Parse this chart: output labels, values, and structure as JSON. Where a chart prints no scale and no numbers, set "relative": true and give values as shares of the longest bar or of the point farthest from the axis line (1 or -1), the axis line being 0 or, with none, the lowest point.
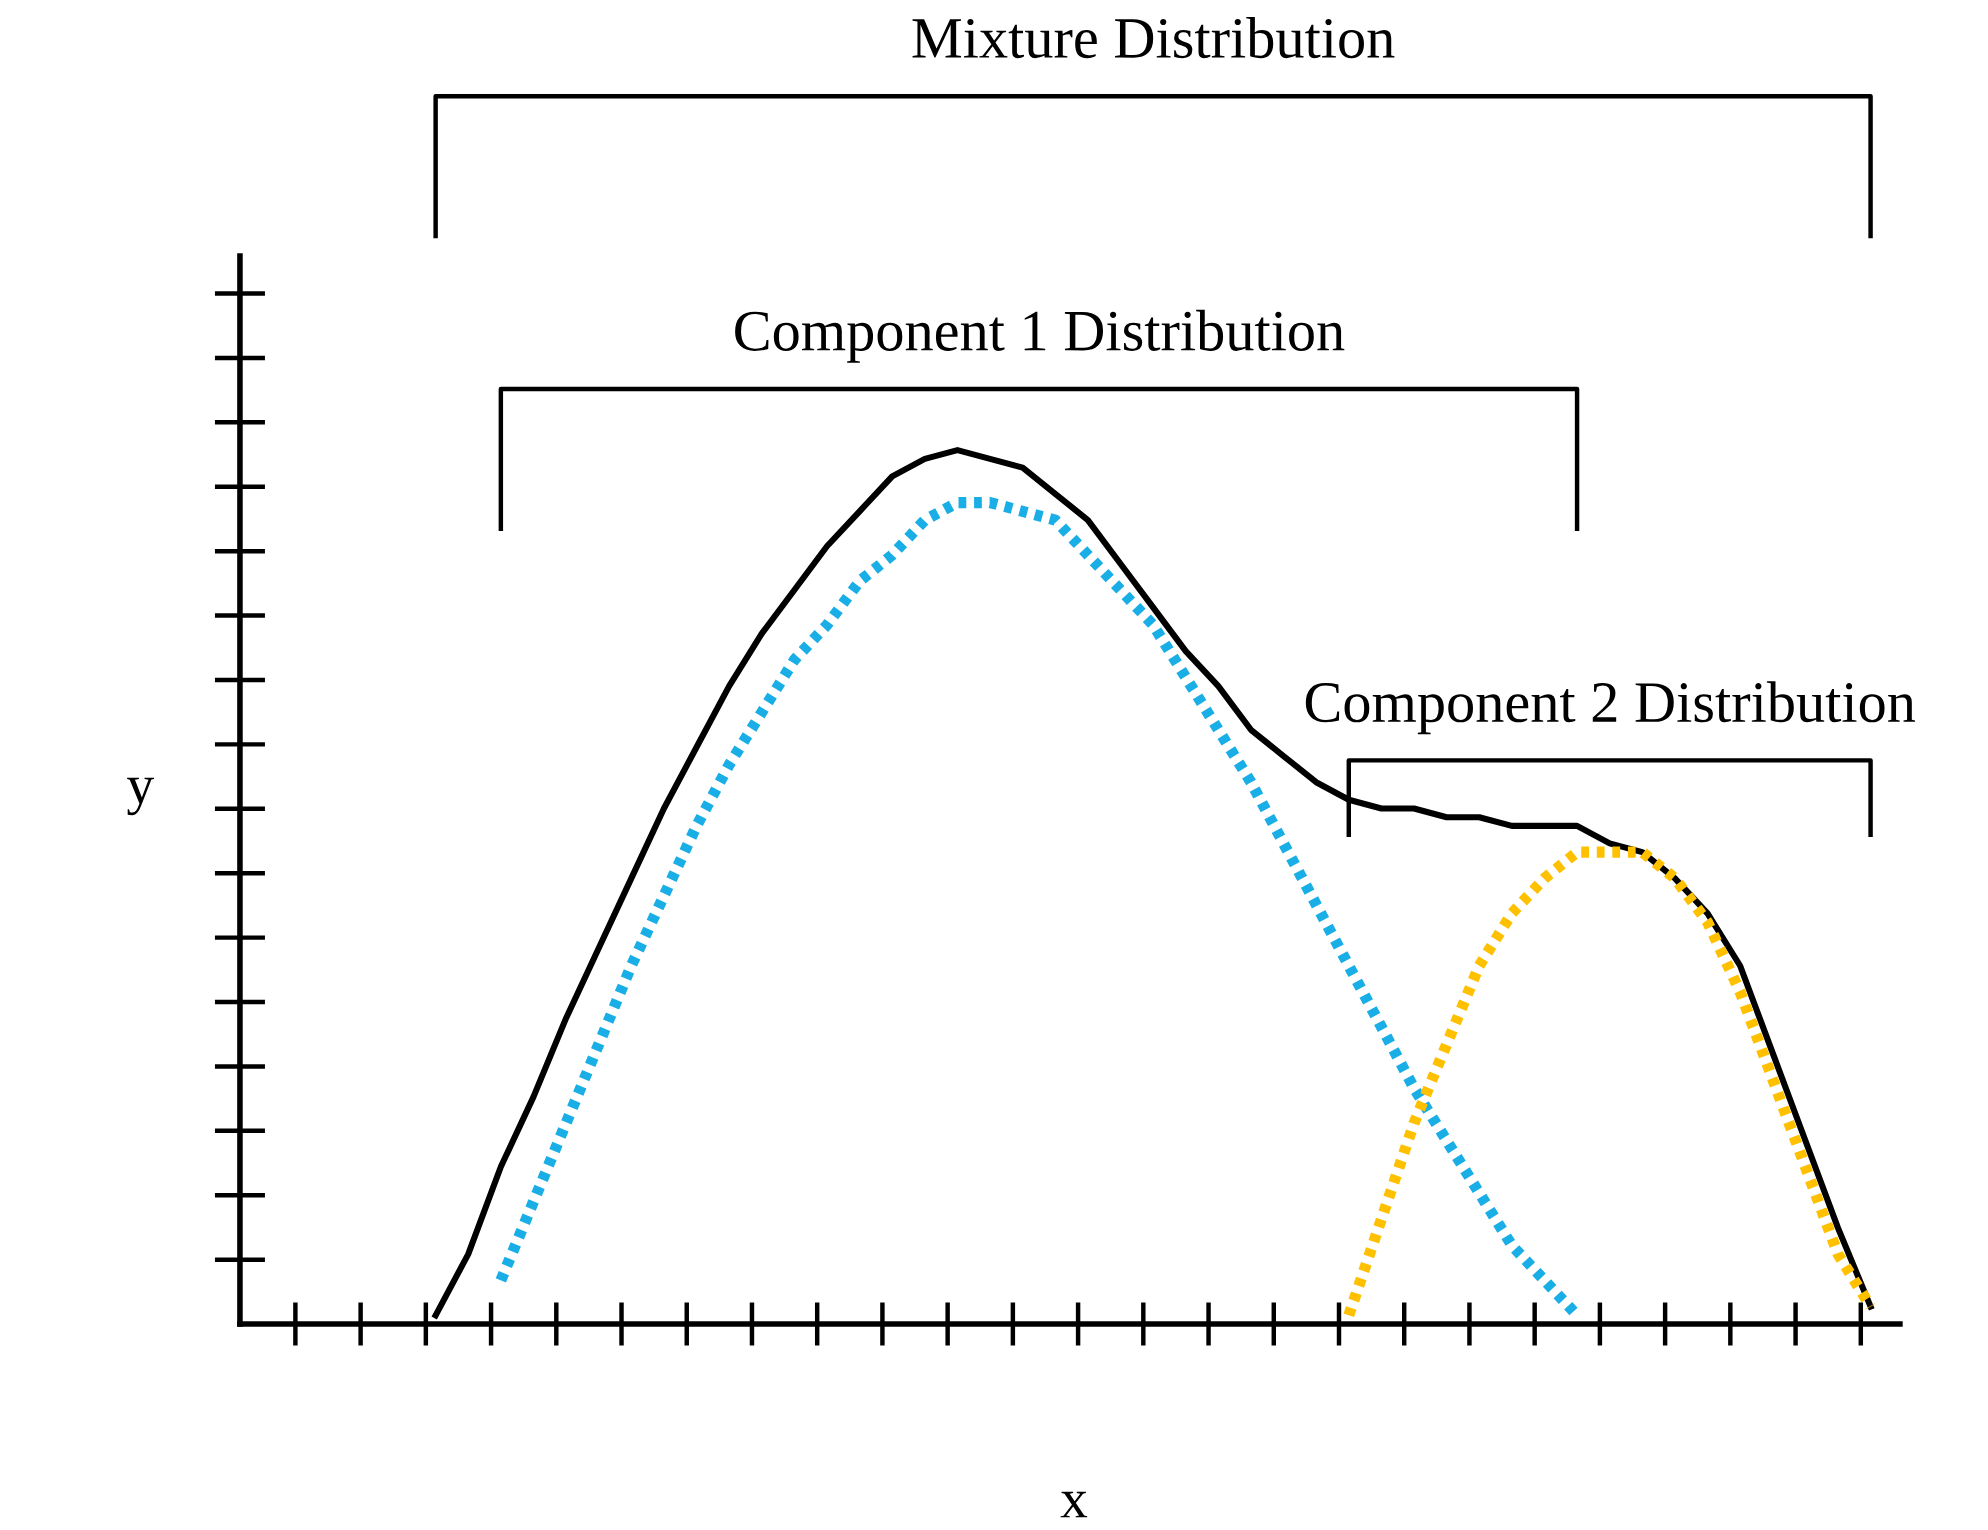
{
  "chart_data": {
    "type": "line",
    "relative": true,
    "xlabel": "x",
    "ylabel": "y",
    "grid": false,
    "marker": "none",
    "annotations": [
      "Mixture Distribution",
      "Component 1 Distribution",
      "Component 2 Distribution"
    ],
    "categories": [
      null,
      null,
      null,
      null,
      null,
      null,
      null,
      null,
      null,
      null,
      null,
      null,
      null,
      null,
      null,
      null,
      null,
      null,
      null,
      null,
      null,
      null,
      null,
      null,
      null,
      null,
      null,
      null,
      null,
      null,
      null,
      null,
      null,
      null,
      null,
      null,
      null,
      null,
      null,
      null,
      null,
      null,
      null,
      null,
      null
    ],
    "series": [
      {
        "color": "#000000",
        "line_style": "solid",
        "values": [
          0.01,
          0.08,
          0.18,
          0.26,
          0.35,
          0.43,
          0.51,
          0.59,
          0.66,
          0.73,
          0.79,
          0.84,
          0.89,
          0.93,
          0.97,
          0.99,
          1.0,
          0.99,
          0.98,
          0.95,
          0.92,
          0.87,
          0.82,
          0.77,
          0.73,
          0.68,
          0.65,
          0.62,
          0.6,
          0.59,
          0.59,
          0.58,
          0.58,
          0.57,
          0.57,
          0.57,
          0.55,
          0.54,
          0.51,
          0.47,
          0.41,
          0.31,
          0.21,
          0.11,
          0.02
        ]
      },
      {
        "color": "#1aaee6",
        "line_style": "dotted",
        "values": [
          null,
          null,
          0.05,
          0.14,
          0.23,
          0.32,
          0.41,
          0.49,
          0.57,
          0.64,
          0.7,
          0.76,
          0.8,
          0.85,
          0.88,
          0.92,
          0.94,
          0.94,
          0.93,
          0.92,
          0.88,
          0.84,
          0.8,
          0.74,
          0.68,
          0.62,
          0.55,
          0.48,
          0.41,
          0.34,
          0.27,
          0.21,
          0.15,
          0.09,
          0.05,
          0.01,
          null,
          null,
          null,
          null,
          null,
          null,
          null,
          null,
          null
        ]
      },
      {
        "color": "#ffc000",
        "line_style": "dotted",
        "values": [
          null,
          null,
          null,
          null,
          null,
          null,
          null,
          null,
          null,
          null,
          null,
          null,
          null,
          null,
          null,
          null,
          null,
          null,
          null,
          null,
          null,
          null,
          null,
          null,
          null,
          null,
          null,
          null,
          0.01,
          0.12,
          0.23,
          0.32,
          0.41,
          0.47,
          0.51,
          0.54,
          0.54,
          0.54,
          0.51,
          0.46,
          0.38,
          0.28,
          0.18,
          0.08,
          0.02
        ]
      }
    ]
  }
}
